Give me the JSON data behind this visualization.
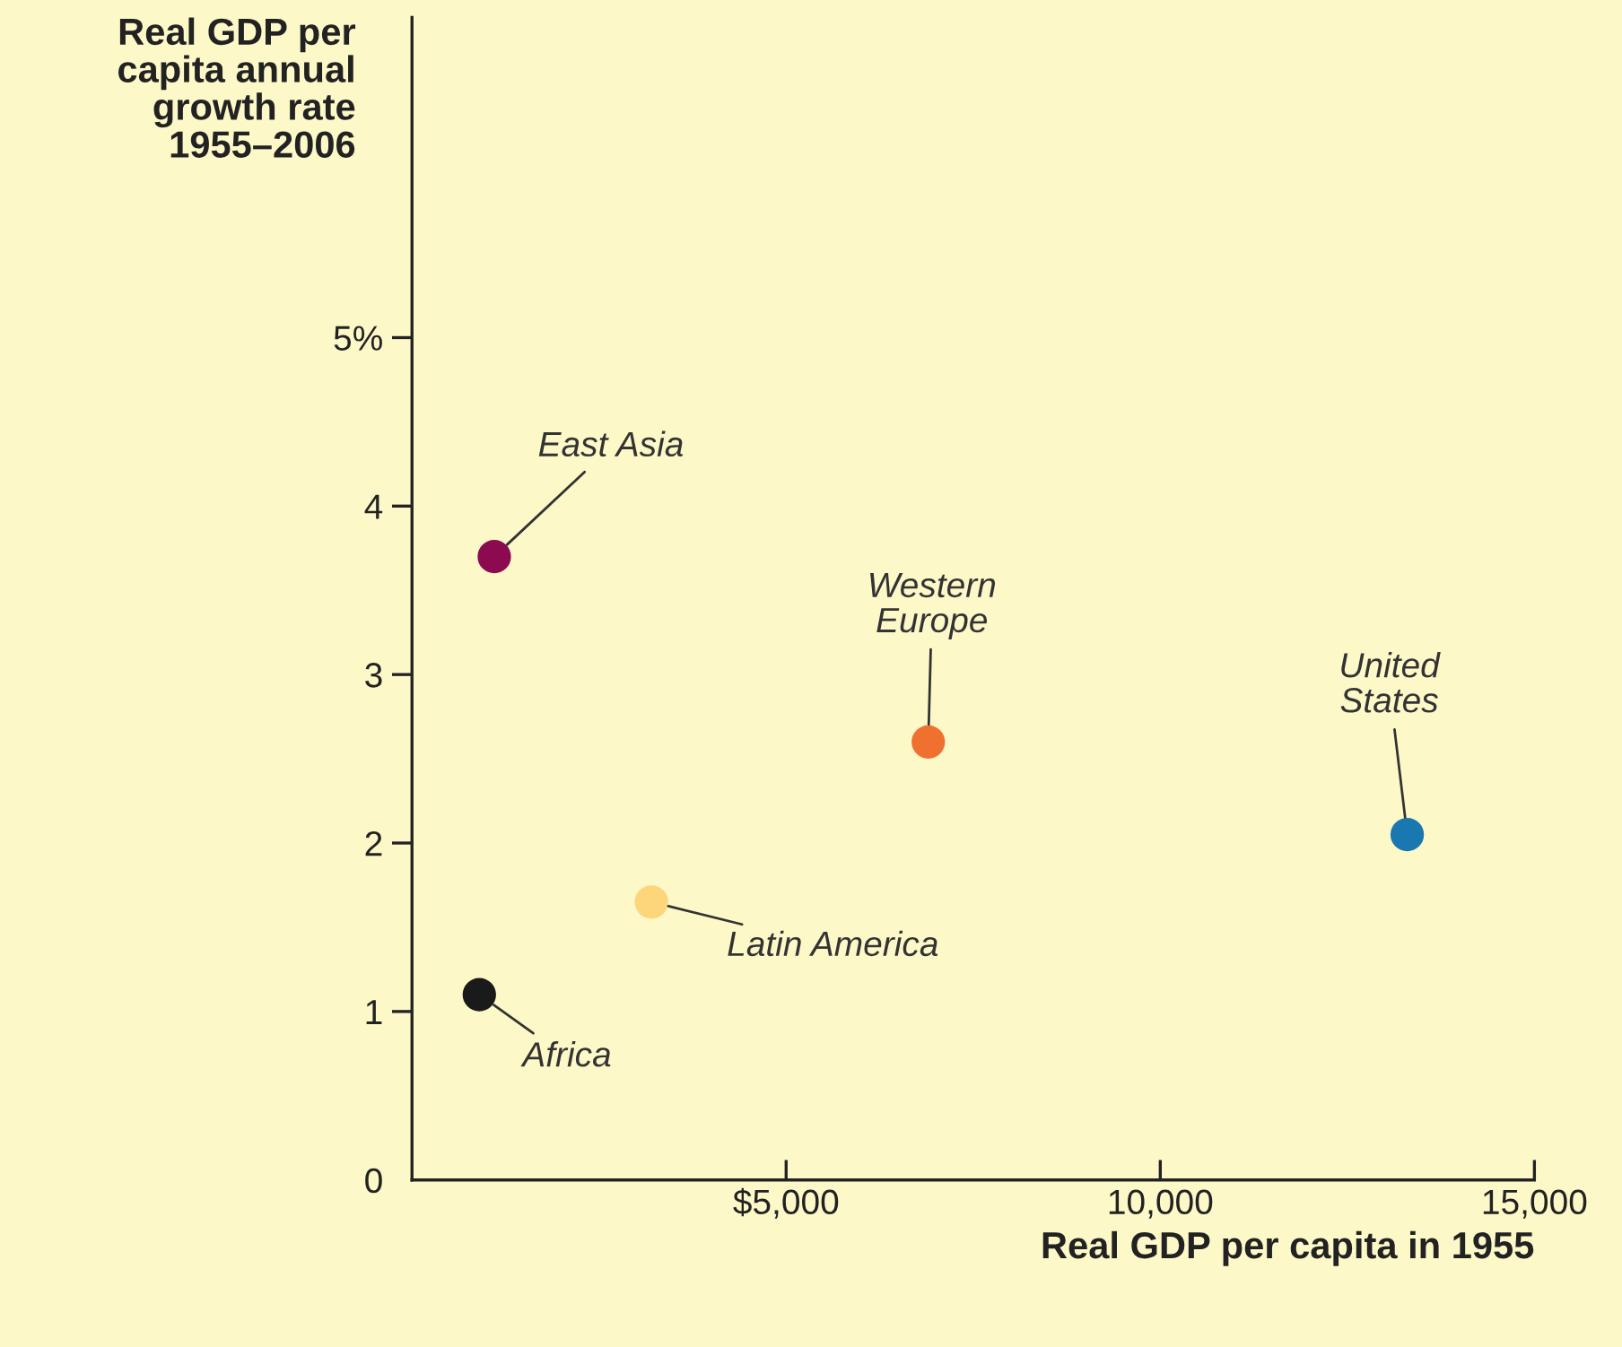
{
  "chart_data": {
    "type": "scatter",
    "xlabel": "Real GDP per capita in 1955",
    "ylabel": "Real GDP per\ncapita annual\ngrowth rate\n1955–2006",
    "xlim": [
      0,
      15000
    ],
    "ylim": [
      0,
      6.9
    ],
    "xticks": [
      {
        "value": 0,
        "label": null
      },
      {
        "value": 5000,
        "label": "$5,000"
      },
      {
        "value": 10000,
        "label": "10,000"
      },
      {
        "value": 15000,
        "label": "15,000"
      }
    ],
    "yticks": [
      0,
      1,
      2,
      3,
      4,
      {
        "value": 5,
        "label": "5%"
      }
    ],
    "marker": "circle",
    "grid": false,
    "legend": false,
    "series": [
      {
        "name": "East Asia",
        "color": "#8b0a50",
        "x": [
          1100
        ],
        "values": [
          3.7
        ]
      },
      {
        "name": "Western\nEurope",
        "color": "#f07030",
        "x": [
          6900
        ],
        "values": [
          2.6
        ]
      },
      {
        "name": "United\nStates",
        "color": "#1a78b0",
        "x": [
          13300
        ],
        "values": [
          2.05
        ]
      },
      {
        "name": "Latin America",
        "color": "#fdd57a",
        "x": [
          3200
        ],
        "values": [
          1.65
        ]
      },
      {
        "name": "Africa",
        "color": "#1a1a1a",
        "x": [
          900
        ],
        "values": [
          1.1
        ]
      }
    ]
  }
}
